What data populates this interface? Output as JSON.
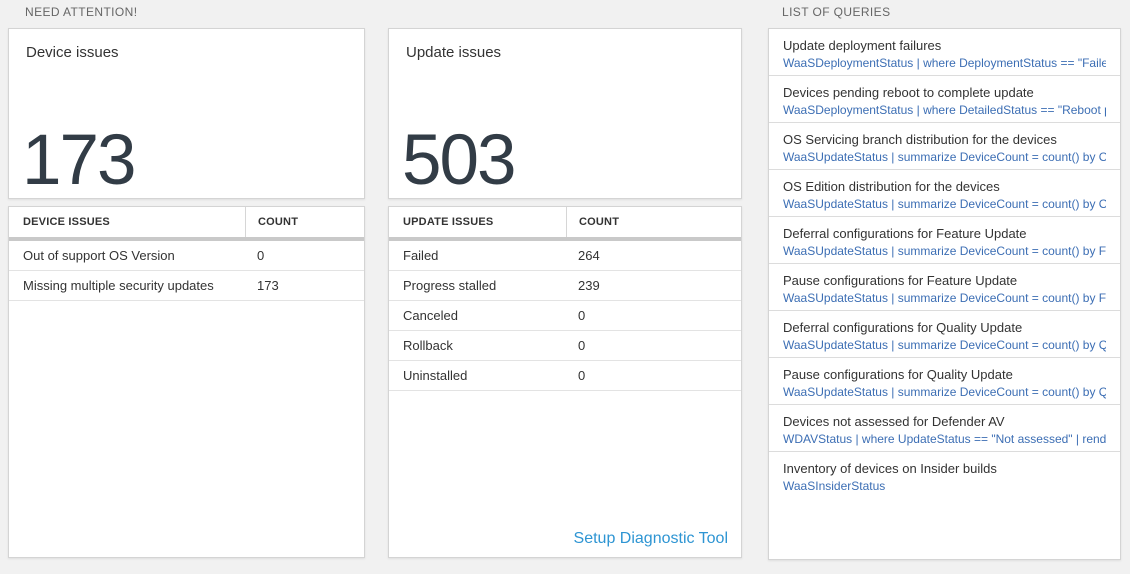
{
  "colors": {
    "page_bg": "#f1f1f1",
    "panel_border": "#d4d4d4",
    "text_dark": "#333333",
    "section_label_gray": "#666666",
    "stat_number": "#323c46",
    "query_blue": "#3c6eb4",
    "action_link_blue": "#2e95d3",
    "thick_separator": "#c9c9c9",
    "row_separator": "#e3e3e3"
  },
  "need_attention": {
    "label": "NEED ATTENTION!",
    "device_card": {
      "title": "Device issues",
      "count": "173"
    },
    "device_table": {
      "headers": [
        "DEVICE ISSUES",
        "COUNT"
      ],
      "rows": [
        {
          "label": "Out of support OS Version",
          "count": "0"
        },
        {
          "label": "Missing multiple security updates",
          "count": "173"
        }
      ]
    },
    "update_card": {
      "title": "Update issues",
      "count": "503"
    },
    "update_table": {
      "headers": [
        "UPDATE ISSUES",
        "COUNT"
      ],
      "rows": [
        {
          "label": "Failed",
          "count": "264"
        },
        {
          "label": "Progress stalled",
          "count": "239"
        },
        {
          "label": "Canceled",
          "count": "0"
        },
        {
          "label": "Rollback",
          "count": "0"
        },
        {
          "label": "Uninstalled",
          "count": "0"
        }
      ],
      "link": "Setup Diagnostic Tool"
    }
  },
  "queries": {
    "label": "LIST OF QUERIES",
    "items": [
      {
        "title": "Update deployment failures",
        "query": "WaaSDeploymentStatus | where DeploymentStatus == \"Failed\" |..."
      },
      {
        "title": "Devices pending reboot to complete update",
        "query": "WaaSDeploymentStatus | where DetailedStatus == \"Reboot pend..."
      },
      {
        "title": "OS Servicing branch distribution for the devices",
        "query": "WaaSUpdateStatus | summarize DeviceCount = count() by OSSer..."
      },
      {
        "title": "OS Edition distribution for the devices",
        "query": "WaaSUpdateStatus | summarize DeviceCount = count() by OSEdit..."
      },
      {
        "title": "Deferral configurations for Feature Update",
        "query": "WaaSUpdateStatus | summarize DeviceCount = count() by Featur..."
      },
      {
        "title": "Pause configurations for Feature Update",
        "query": "WaaSUpdateStatus | summarize DeviceCount = count() by Featur..."
      },
      {
        "title": "Deferral configurations for Quality Update",
        "query": "WaaSUpdateStatus | summarize DeviceCount = count() by Qualit..."
      },
      {
        "title": "Pause configurations for Quality Update",
        "query": "WaaSUpdateStatus | summarize DeviceCount = count() by Qualit..."
      },
      {
        "title": "Devices not assessed for Defender AV",
        "query": "WDAVStatus | where UpdateStatus == \"Not assessed\" | render ta..."
      },
      {
        "title": "Inventory of devices on Insider builds",
        "query": "WaaSInsiderStatus"
      }
    ]
  }
}
